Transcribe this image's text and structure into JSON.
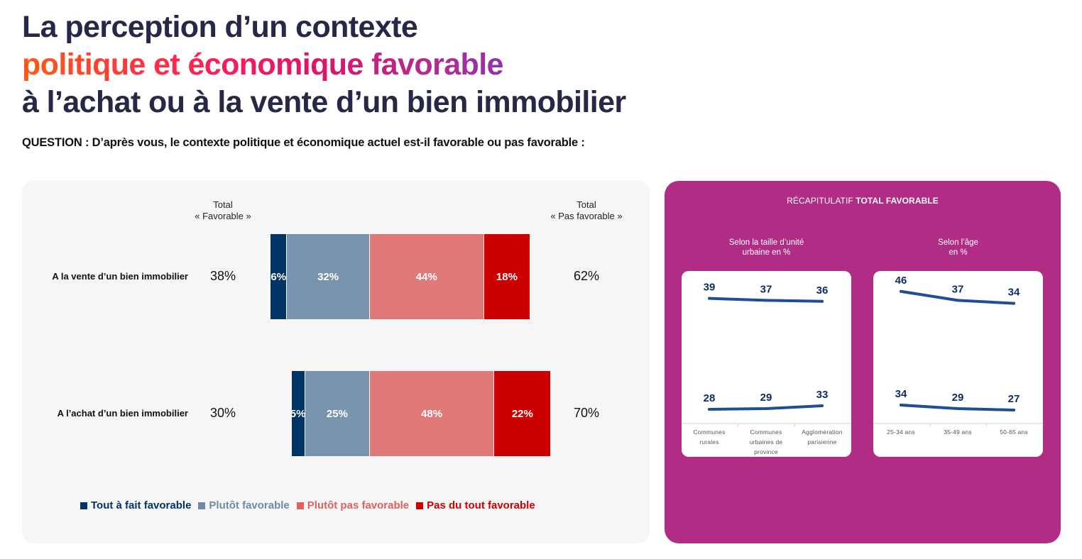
{
  "title": {
    "line1": "La perception d’un contexte",
    "line2": "politique et économique favorable",
    "line3": "à l’achat ou à la vente d’un bien immobilier"
  },
  "question": "QUESTION : D’après vous, le contexte politique et économique actuel est-il favorable ou pas favorable :",
  "colors": {
    "tout_a_fait": "#003366",
    "plutot": "#7b94ad",
    "plutot_pas": "#e07a7a",
    "pas_du_tout": "#cc0000",
    "panel_magenta": "#b12c84",
    "line": "#1e4f94",
    "label_navy": "#0f2d63"
  },
  "left_panel": {
    "head_favorable": [
      "Total",
      "« Favorable »"
    ],
    "head_pas_favorable": [
      "Total",
      "« Pas favorable »"
    ]
  },
  "chart_data": [
    {
      "type": "bar",
      "subtype": "stacked-diverging-horizontal",
      "categories": [
        "A la vente d’un bien immobilier",
        "A l’achat d’un bien immobilier"
      ],
      "series": [
        {
          "name": "Tout à fait favorable",
          "values": [
            6,
            5
          ]
        },
        {
          "name": "Plutôt favorable",
          "values": [
            32,
            25
          ]
        },
        {
          "name": "Plutôt pas favorable",
          "values": [
            44,
            48
          ]
        },
        {
          "name": "Pas du tout favorable",
          "values": [
            18,
            22
          ]
        }
      ],
      "total_favorable": [
        38,
        30
      ],
      "total_pas_favorable": [
        62,
        70
      ],
      "unit": "%",
      "legend_position": "bottom"
    },
    {
      "type": "line",
      "title": "Selon la taille d’unité urbaine en %",
      "categories": [
        [
          "Communes",
          "rurales"
        ],
        [
          "Communes",
          "urbaines de",
          "province"
        ],
        [
          "Agglomération",
          "parisienne"
        ]
      ],
      "series": [
        {
          "values": [
            39,
            37,
            36
          ]
        },
        {
          "values": [
            28,
            29,
            33
          ]
        }
      ]
    },
    {
      "type": "line",
      "title": "Selon l’âge en %",
      "categories": [
        [
          "25-34 ans"
        ],
        [
          "35-49 ans"
        ],
        [
          "50-65 ans"
        ]
      ],
      "series": [
        {
          "values": [
            46,
            37,
            34
          ]
        },
        {
          "values": [
            34,
            29,
            27
          ]
        }
      ]
    }
  ],
  "recap": {
    "prefix": "RÉCAPITULATIF ",
    "bold": "TOTAL FAVORABLE",
    "sub1": [
      "Selon la taille d’unité",
      "urbaine en %"
    ],
    "sub2": [
      "Selon l’âge",
      "en %"
    ]
  }
}
